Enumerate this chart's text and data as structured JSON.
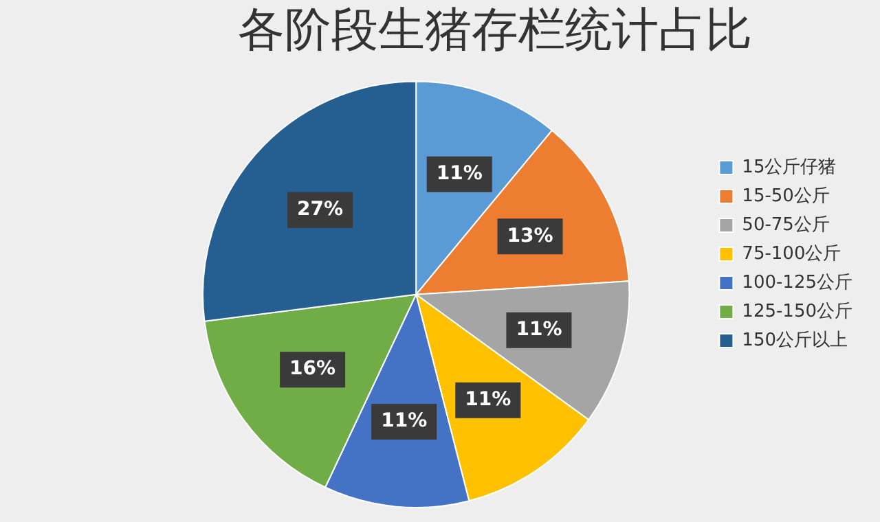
{
  "chart_data": {
    "type": "pie",
    "title": "各阶段生猪存栏统计占比",
    "categories": [
      "15公斤仔猪",
      "15-50公斤",
      "50-75公斤",
      "75-100公斤",
      "100-125公斤",
      "125-150公斤",
      "150公斤以上"
    ],
    "values": [
      11,
      13,
      11,
      11,
      11,
      16,
      27
    ],
    "value_labels": [
      "11%",
      "13%",
      "11%",
      "11%",
      "11%",
      "16%",
      "27%"
    ],
    "colors": [
      "#5b9bd5",
      "#ed7d31",
      "#a5a5a5",
      "#ffc000",
      "#4472c4",
      "#70ad47",
      "#255e91"
    ],
    "legend": "right"
  }
}
